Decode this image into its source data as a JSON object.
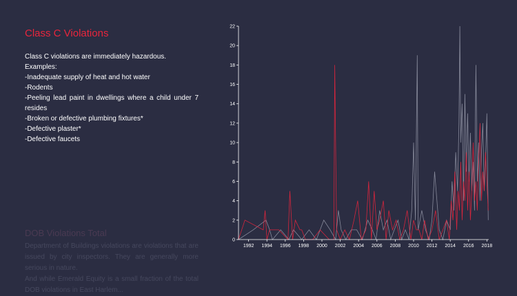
{
  "left": {
    "title": "Class C Violations",
    "intro": "Class C violations are immediately hazardous.",
    "examples_label": "Examples:",
    "items": [
      "-Inadequate supply of heat and hot water",
      "-Rodents",
      "-Peeling lead paint in dwellings where a child under 7 resides",
      "-Broken or defective plumbing fixtures*",
      "-Defective plaster*",
      "-Defective faucets"
    ]
  },
  "faded": {
    "title": "DOB Violations Total",
    "paragraph1": "Department of Buildings violations are violations that are issued by city inspectors. They are generally more serious in nature.",
    "paragraph2": "And while Emerald Equity is a small fraction of the total DOB violations in East Harlem..."
  },
  "colors": {
    "background": "#2b2d42",
    "accent": "#e8253c",
    "series_red": "#e8253c",
    "series_grey": "#a6a8b8"
  },
  "chart_data": {
    "type": "line",
    "title": "",
    "xlabel": "",
    "ylabel": "",
    "xlim": [
      1990.9,
      2018.2
    ],
    "ylim": [
      0,
      22
    ],
    "xticks": [
      "1992",
      "1994",
      "1996",
      "1998",
      "2000",
      "2002",
      "2004",
      "2006",
      "2008",
      "2010",
      "2012",
      "2014",
      "2016",
      "2018"
    ],
    "yticks": [
      "0",
      "2",
      "4",
      "6",
      "8",
      "10",
      "12",
      "14",
      "16",
      "18",
      "20",
      "22"
    ],
    "grid": false,
    "series": [
      {
        "color": "#a6a8b8",
        "x": [
          1990.9,
          1992.5,
          1993.9,
          1994.3,
          1994.6,
          1995.5,
          1996.4,
          1996.9,
          1997.8,
          1998.6,
          1999.4,
          2000.2,
          2000.9,
          2001.5,
          2001.8,
          2002.1,
          2002.6,
          2003.2,
          2003.8,
          2004.4,
          2005.0,
          2005.5,
          2005.9,
          2006.3,
          2006.7,
          2007.1,
          2007.5,
          2007.9,
          2008.3,
          2008.7,
          2009.1,
          2009.5,
          2009.8,
          2010.0,
          2010.2,
          2010.4,
          2010.5,
          2010.7,
          2010.9,
          2011.3,
          2011.7,
          2012.0,
          2012.3,
          2012.8,
          2013.2,
          2013.6,
          2014.0,
          2014.2,
          2014.4,
          2014.6,
          2014.8,
          2014.95,
          2015.05,
          2015.15,
          2015.3,
          2015.45,
          2015.6,
          2015.75,
          2015.9,
          2016.05,
          2016.2,
          2016.35,
          2016.5,
          2016.65,
          2016.8,
          2016.95,
          2017.1,
          2017.25,
          2017.4,
          2017.55,
          2017.7,
          2017.85,
          2018.0,
          2018.15
        ],
        "y": [
          0,
          1,
          2,
          1,
          0,
          1,
          0,
          1,
          0,
          1,
          0,
          2,
          1,
          0,
          3,
          1,
          0,
          1,
          1,
          0,
          2,
          1,
          0,
          3,
          1,
          2,
          0,
          1,
          2,
          0,
          1,
          0,
          3,
          10,
          2,
          19,
          1,
          2,
          3,
          1,
          0,
          2,
          7,
          1,
          0,
          2,
          1,
          6,
          3,
          9,
          5,
          12,
          22,
          10,
          14,
          4,
          15,
          7,
          13,
          6,
          11,
          5,
          8,
          3,
          18,
          6,
          10,
          4,
          9,
          12,
          5,
          8,
          13,
          2
        ]
      },
      {
        "color": "#e8253c",
        "x": [
          1990.9,
          1991.6,
          1993.6,
          1993.8,
          1994.0,
          1994.3,
          1995.3,
          1996.3,
          1996.5,
          1996.8,
          1997.1,
          1997.6,
          1997.8,
          1998.2,
          1999.0,
          1999.8,
          2000.8,
          2001.3,
          2001.4,
          2001.6,
          2002.0,
          2002.5,
          2003.0,
          2003.5,
          2003.9,
          2004.3,
          2004.8,
          2005.1,
          2005.4,
          2005.7,
          2006.0,
          2006.3,
          2006.7,
          2007.0,
          2007.3,
          2007.7,
          2008.1,
          2008.5,
          2008.9,
          2009.3,
          2009.7,
          2010.0,
          2010.3,
          2010.6,
          2010.9,
          2011.2,
          2011.6,
          2012.0,
          2012.4,
          2012.8,
          2013.2,
          2013.6,
          2013.9,
          2014.1,
          2014.3,
          2014.5,
          2014.7,
          2014.85,
          2015.0,
          2015.15,
          2015.3,
          2015.45,
          2015.6,
          2015.75,
          2015.9,
          2016.05,
          2016.2,
          2016.35,
          2016.5,
          2016.65,
          2016.8,
          2016.95,
          2017.1,
          2017.25,
          2017.4,
          2017.55,
          2017.7,
          2017.85,
          2018.0,
          2018.15
        ],
        "y": [
          0,
          2,
          1,
          3,
          0,
          1,
          1,
          0,
          5,
          0,
          2,
          1,
          1,
          0,
          0,
          1,
          0,
          0,
          18,
          1,
          0,
          1,
          0,
          2,
          4,
          0,
          1,
          6,
          0,
          5,
          1,
          2,
          4,
          0,
          3,
          1,
          2,
          0,
          1,
          3,
          0,
          2,
          1,
          1,
          0,
          2,
          0,
          1,
          3,
          0,
          1,
          2,
          0,
          4,
          2,
          7,
          1,
          5,
          3,
          8,
          2,
          6,
          4,
          9,
          3,
          7,
          2,
          5,
          10,
          4,
          6,
          3,
          8,
          12,
          4,
          7,
          5,
          9,
          6,
          3
        ]
      }
    ]
  }
}
